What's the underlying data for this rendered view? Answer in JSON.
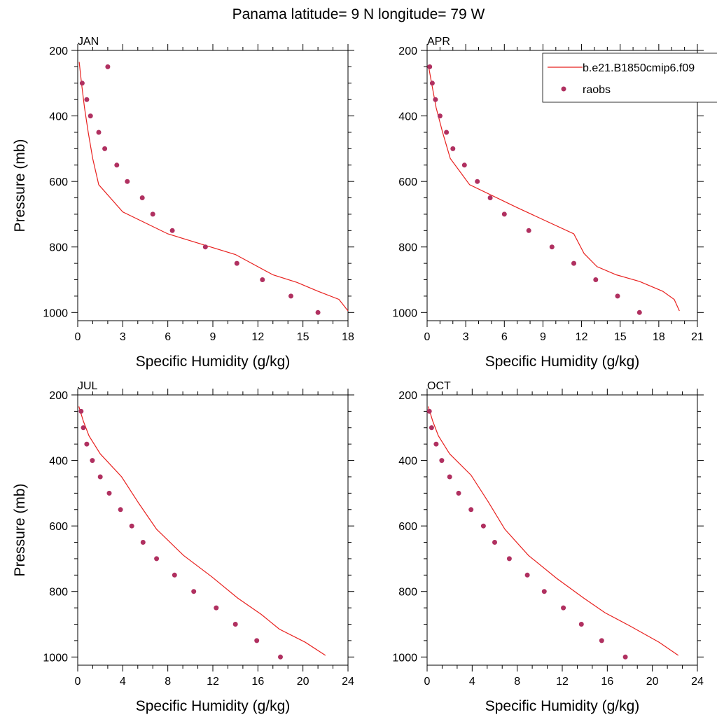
{
  "title": "Panama  latitude= 9 N longitude= 79 W",
  "colors": {
    "model": "#e8211f",
    "obs": "#b03060",
    "axis": "#000000"
  },
  "legend": {
    "placement": "top-right of APR panel",
    "model_label": "b.e21.B1850cmip6.f09",
    "obs_label": "raobs"
  },
  "chart_data": [
    {
      "type": "line",
      "panel_label": "JAN",
      "xlabel": "Specific Humidity (g/kg)",
      "ylabel": "Pressure (mb)",
      "xlim": [
        0,
        18
      ],
      "ylim": [
        200,
        1025
      ],
      "y_inverted": true,
      "xticks": [
        0,
        3,
        6,
        9,
        12,
        15,
        18
      ],
      "yticks": [
        200,
        400,
        600,
        800,
        1000
      ],
      "series": [
        {
          "name": "b.e21.B1850cmip6.f09",
          "kind": "line",
          "x": [
            0.1,
            0.25,
            0.45,
            0.7,
            1.0,
            1.4,
            3.0,
            6.0,
            10.5,
            13.0,
            14.6,
            16.0,
            17.4,
            18.0
          ],
          "y": [
            235,
            300,
            375,
            450,
            530,
            610,
            693,
            760,
            823,
            885,
            908,
            935,
            960,
            995
          ]
        },
        {
          "name": "raobs",
          "kind": "scatter",
          "x": [
            2.0,
            0.3,
            0.6,
            0.85,
            1.4,
            1.8,
            2.6,
            3.3,
            4.3,
            5.0,
            6.3,
            8.5,
            10.6,
            12.3,
            14.2,
            16.0
          ],
          "y": [
            250,
            300,
            350,
            400,
            450,
            500,
            550,
            600,
            650,
            700,
            750,
            800,
            850,
            900,
            950,
            1000
          ]
        }
      ]
    },
    {
      "type": "line",
      "panel_label": "APR",
      "xlabel": "Specific Humidity (g/kg)",
      "ylabel": "",
      "xlim": [
        0,
        21
      ],
      "ylim": [
        200,
        1025
      ],
      "y_inverted": true,
      "xticks": [
        0,
        3,
        6,
        9,
        12,
        15,
        18,
        21
      ],
      "yticks": [
        200,
        400,
        600,
        800,
        1000
      ],
      "series": [
        {
          "name": "b.e21.B1850cmip6.f09",
          "kind": "line",
          "x": [
            0.1,
            0.35,
            0.7,
            1.2,
            1.8,
            3.3,
            7.0,
            11.4,
            12.2,
            13.2,
            14.7,
            16.5,
            18.3,
            19.2,
            19.6
          ],
          "y": [
            245,
            300,
            375,
            450,
            530,
            610,
            680,
            760,
            820,
            860,
            885,
            905,
            935,
            960,
            995
          ]
        },
        {
          "name": "raobs",
          "kind": "scatter",
          "x": [
            0.2,
            0.4,
            0.65,
            1.0,
            1.5,
            2.0,
            2.9,
            3.9,
            4.9,
            6.0,
            7.9,
            9.7,
            11.4,
            13.1,
            14.8,
            16.5
          ],
          "y": [
            250,
            300,
            350,
            400,
            450,
            500,
            550,
            600,
            650,
            700,
            750,
            800,
            850,
            900,
            950,
            1000
          ]
        }
      ]
    },
    {
      "type": "line",
      "panel_label": "JUL",
      "xlabel": "Specific Humidity (g/kg)",
      "ylabel": "Pressure (mb)",
      "xlim": [
        0,
        24
      ],
      "ylim": [
        200,
        1025
      ],
      "y_inverted": true,
      "xticks": [
        0,
        4,
        8,
        12,
        16,
        20,
        24
      ],
      "yticks": [
        200,
        400,
        600,
        800,
        1000
      ],
      "series": [
        {
          "name": "b.e21.B1850cmip6.f09",
          "kind": "line",
          "x": [
            0.1,
            0.5,
            1.0,
            2.0,
            3.9,
            5.4,
            7.0,
            9.4,
            11.9,
            14.2,
            16.3,
            17.9,
            20.2,
            22.0
          ],
          "y": [
            235,
            280,
            325,
            380,
            450,
            530,
            610,
            690,
            755,
            820,
            870,
            915,
            955,
            995
          ]
        },
        {
          "name": "raobs",
          "kind": "scatter",
          "x": [
            0.3,
            0.5,
            0.8,
            1.3,
            2.0,
            2.8,
            3.8,
            4.8,
            5.8,
            7.0,
            8.6,
            10.3,
            12.3,
            14.0,
            15.9,
            18.0
          ],
          "y": [
            250,
            300,
            350,
            400,
            450,
            500,
            550,
            600,
            650,
            700,
            750,
            800,
            850,
            900,
            950,
            1000
          ]
        }
      ]
    },
    {
      "type": "line",
      "panel_label": "OCT",
      "xlabel": "Specific Humidity (g/kg)",
      "ylabel": "",
      "xlim": [
        0,
        24
      ],
      "ylim": [
        200,
        1025
      ],
      "y_inverted": true,
      "xticks": [
        0,
        4,
        8,
        12,
        16,
        20,
        24
      ],
      "yticks": [
        200,
        400,
        600,
        800,
        1000
      ],
      "series": [
        {
          "name": "b.e21.B1850cmip6.f09",
          "kind": "line",
          "x": [
            0.1,
            0.5,
            1.0,
            2.0,
            3.9,
            5.4,
            6.9,
            9.0,
            11.5,
            13.9,
            15.8,
            18.0,
            20.6,
            22.3
          ],
          "y": [
            235,
            280,
            325,
            380,
            445,
            525,
            610,
            690,
            760,
            820,
            865,
            905,
            955,
            995
          ]
        },
        {
          "name": "raobs",
          "kind": "scatter",
          "x": [
            0.2,
            0.4,
            0.8,
            1.3,
            2.0,
            2.8,
            3.9,
            5.0,
            6.0,
            7.3,
            8.9,
            10.4,
            12.1,
            13.7,
            15.5,
            17.6
          ],
          "y": [
            250,
            300,
            350,
            400,
            450,
            500,
            550,
            600,
            650,
            700,
            750,
            800,
            850,
            900,
            950,
            1000
          ]
        }
      ]
    }
  ]
}
